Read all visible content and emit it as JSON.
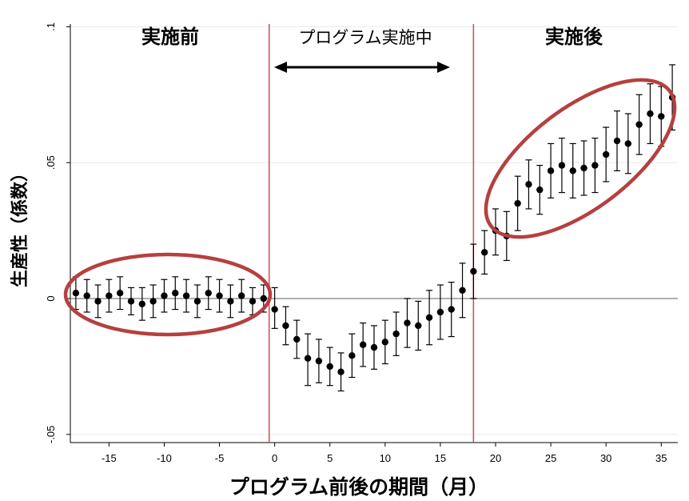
{
  "chart_data": {
    "type": "scatter",
    "xlabel": "プログラム前後の期間（月）",
    "ylabel": "生産性（係数）",
    "x_ticks": [
      "-15",
      "-10",
      "-5",
      "0",
      "5",
      "10",
      "15",
      "20",
      "25",
      "30",
      "35"
    ],
    "y_ticks": [
      "-.05",
      "0",
      ".05",
      ".1"
    ],
    "xlim": [
      -18.5,
      36.5
    ],
    "ylim": [
      -0.053,
      0.101
    ],
    "reference_lines": {
      "x": [
        -0.5,
        18
      ],
      "y": [
        0
      ]
    },
    "annotations": {
      "before": "実施前",
      "during": "プログラム実施中",
      "after": "実施後"
    },
    "series": [
      {
        "x": [
          -18,
          -17,
          -16,
          -15,
          -14,
          -13,
          -12,
          -11,
          -10,
          -9,
          -8,
          -7,
          -6,
          -5,
          -4,
          -3,
          -2,
          -1,
          0,
          1,
          2,
          3,
          4,
          5,
          6,
          7,
          8,
          9,
          10,
          11,
          12,
          13,
          14,
          15,
          16,
          17,
          18,
          19,
          20,
          21,
          22,
          23,
          24,
          25,
          26,
          27,
          28,
          29,
          30,
          31,
          32,
          33,
          34,
          35,
          36
        ],
        "y": [
          0.002,
          0.001,
          -0.001,
          0.001,
          0.002,
          -0.001,
          -0.002,
          -0.001,
          0.001,
          0.002,
          0.001,
          -0.001,
          0.002,
          0.001,
          -0.001,
          0.001,
          -0.001,
          0.0,
          -0.004,
          -0.01,
          -0.015,
          -0.022,
          -0.023,
          -0.025,
          -0.027,
          -0.021,
          -0.017,
          -0.018,
          -0.016,
          -0.013,
          -0.009,
          -0.01,
          -0.007,
          -0.005,
          -0.004,
          0.003,
          0.01,
          0.017,
          0.025,
          0.023,
          0.035,
          0.042,
          0.04,
          0.047,
          0.049,
          0.047,
          0.048,
          0.049,
          0.053,
          0.058,
          0.057,
          0.064,
          0.068,
          0.067,
          0.074
        ],
        "ci_low": [
          -0.004,
          -0.005,
          -0.007,
          -0.005,
          -0.004,
          -0.006,
          -0.008,
          -0.007,
          -0.005,
          -0.004,
          -0.005,
          -0.007,
          -0.004,
          -0.005,
          -0.007,
          -0.005,
          -0.006,
          -0.005,
          -0.011,
          -0.017,
          -0.022,
          -0.032,
          -0.031,
          -0.032,
          -0.034,
          -0.029,
          -0.025,
          -0.026,
          -0.024,
          -0.021,
          -0.018,
          -0.019,
          -0.017,
          -0.015,
          -0.014,
          -0.007,
          0.0,
          0.009,
          0.016,
          0.014,
          0.025,
          0.033,
          0.031,
          0.037,
          0.039,
          0.037,
          0.038,
          0.039,
          0.043,
          0.047,
          0.046,
          0.053,
          0.057,
          0.056,
          0.062
        ],
        "ci_high": [
          0.008,
          0.007,
          0.005,
          0.007,
          0.008,
          0.004,
          0.004,
          0.005,
          0.007,
          0.008,
          0.007,
          0.005,
          0.008,
          0.007,
          0.005,
          0.007,
          0.004,
          0.005,
          0.004,
          -0.003,
          -0.008,
          -0.013,
          -0.015,
          -0.018,
          -0.02,
          -0.013,
          -0.009,
          -0.01,
          -0.008,
          -0.005,
          0.0,
          -0.001,
          0.003,
          0.005,
          0.006,
          0.013,
          0.02,
          0.025,
          0.033,
          0.032,
          0.045,
          0.051,
          0.049,
          0.057,
          0.059,
          0.057,
          0.058,
          0.059,
          0.063,
          0.069,
          0.068,
          0.075,
          0.079,
          0.078,
          0.086
        ]
      }
    ]
  },
  "colors": {
    "marker": "#000000",
    "reference_line": "#c8504d",
    "highlight_ellipse": "#b5403f",
    "zero_line": "#808080",
    "grid": "#e5ecef"
  }
}
